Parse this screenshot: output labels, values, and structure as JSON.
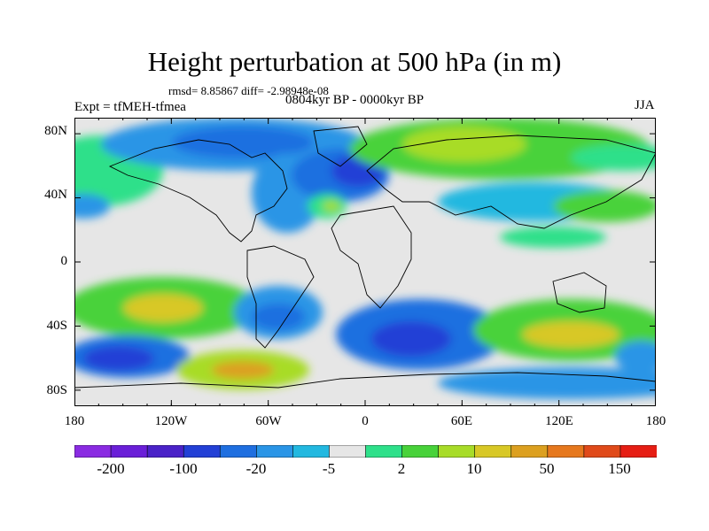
{
  "title": "Height perturbation at 500 hPa (in m)",
  "stats": "rmsd= 8.85867 diff= -2.98948e-08",
  "expt": "Expt = tfMEH-tfmea",
  "period": "0804kyr BP - 0000kyr BP",
  "season": "JJA",
  "y_ticks": [
    "80N",
    "40N",
    "0",
    "40S",
    "80S"
  ],
  "x_ticks": [
    "180",
    "120W",
    "60W",
    "0",
    "60E",
    "120E",
    "180"
  ],
  "colorbar": {
    "colors": [
      "#8a2be2",
      "#6a1fd8",
      "#4a22c8",
      "#2340d6",
      "#1f6fe0",
      "#2a95e6",
      "#22b8e0",
      "#e6e6e6",
      "#2ee08a",
      "#48d23a",
      "#a8dc28",
      "#d8c826",
      "#dca020",
      "#e6781e",
      "#e04a1a",
      "#e61e14"
    ],
    "labels": [
      "-200",
      "-100",
      "-20",
      "-5",
      "2",
      "10",
      "50",
      "150"
    ]
  },
  "map_fields": {
    "background": "#e6e6e6",
    "regions": [
      {
        "name": "arctic-canada-low",
        "color": "#2a95e6"
      },
      {
        "name": "north-atlantic-low",
        "color": "#2340d6"
      },
      {
        "name": "eurasia-high",
        "color": "#48d23a"
      },
      {
        "name": "north-pacific-high",
        "color": "#2ee08a"
      },
      {
        "name": "subtropical-atlantic-high",
        "color": "#a8dc28"
      },
      {
        "name": "southern-indian-low",
        "color": "#2340d6"
      },
      {
        "name": "south-pacific-high",
        "color": "#d8c826"
      },
      {
        "name": "antarctic-ring-high",
        "color": "#48d23a"
      },
      {
        "name": "south-atlantic-low",
        "color": "#1f6fe0"
      }
    ]
  }
}
